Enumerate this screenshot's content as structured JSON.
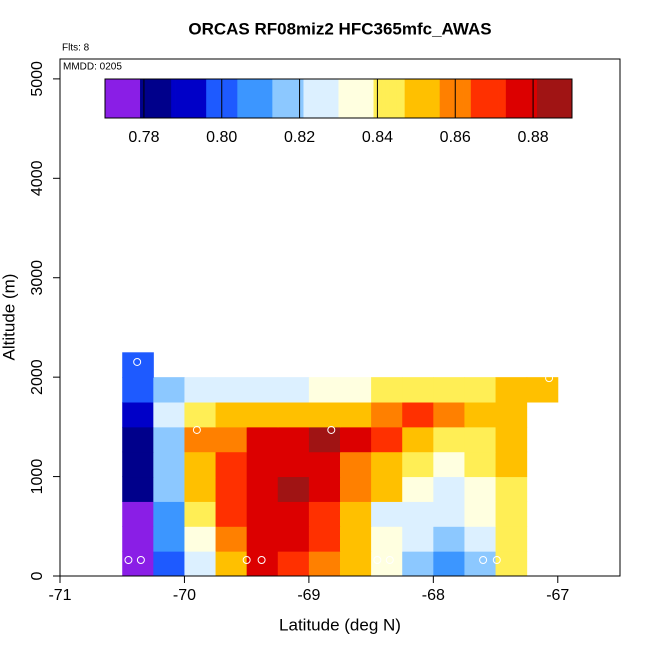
{
  "chart_data": {
    "type": "heatmap",
    "title": "ORCAS RF08miz2 HFC365mfc_AWAS",
    "annotations": [
      "Flts: 8",
      "MMDD: 0205"
    ],
    "xlabel": "Latitude (deg N)",
    "ylabel": "Altitude (m)",
    "xlim": [
      -71,
      -66.5
    ],
    "xticks": [
      -71,
      -70,
      -69,
      -68,
      -67
    ],
    "ylim": [
      0,
      5200
    ],
    "yticks": [
      0,
      1000,
      2000,
      3000,
      4000,
      5000
    ],
    "xbins": [
      -70.5,
      -70.25,
      -70.0,
      -69.75,
      -69.5,
      -69.25,
      -69.0,
      -68.75,
      -68.5,
      -68.25,
      -68.0,
      -67.75,
      -67.5,
      -67.25,
      -67.0
    ],
    "ybins": [
      0,
      250,
      500,
      750,
      1000,
      1250,
      1500,
      1750,
      2000,
      2250
    ],
    "z": [
      [
        0.772,
        0.797,
        0.825,
        0.855,
        0.88,
        0.87,
        0.862,
        0.848,
        0.835,
        0.818,
        0.808,
        0.818,
        0.84,
        null
      ],
      [
        0.776,
        0.805,
        0.833,
        0.862,
        0.878,
        0.88,
        0.866,
        0.855,
        0.836,
        0.825,
        0.82,
        0.822,
        0.843,
        null
      ],
      [
        0.778,
        0.81,
        0.845,
        0.866,
        0.878,
        0.881,
        0.868,
        0.85,
        0.83,
        0.828,
        0.825,
        0.832,
        0.845,
        null
      ],
      [
        0.78,
        0.813,
        0.85,
        0.866,
        0.876,
        0.884,
        0.875,
        0.86,
        0.852,
        0.838,
        0.829,
        0.838,
        0.847,
        null
      ],
      [
        0.783,
        0.817,
        0.855,
        0.866,
        0.874,
        0.881,
        0.878,
        0.862,
        0.853,
        0.847,
        0.833,
        0.843,
        0.848,
        null
      ],
      [
        0.785,
        0.82,
        0.857,
        0.864,
        0.873,
        0.879,
        0.886,
        0.876,
        0.866,
        0.853,
        0.842,
        0.846,
        0.849,
        null
      ],
      [
        0.79,
        0.825,
        0.847,
        0.849,
        0.851,
        0.852,
        0.853,
        0.855,
        0.859,
        0.866,
        0.862,
        0.853,
        0.85,
        null
      ],
      [
        0.797,
        0.821,
        0.822,
        0.823,
        0.825,
        0.828,
        0.833,
        0.836,
        0.84,
        0.843,
        0.845,
        0.847,
        0.85,
        0.852
      ],
      [
        0.8,
        null,
        null,
        null,
        null,
        null,
        null,
        null,
        null,
        null,
        null,
        null,
        null,
        null
      ]
    ],
    "points": {
      "x": [
        -70.45,
        -70.35,
        -70.38,
        -69.9,
        -69.5,
        -69.38,
        -68.82,
        -68.45,
        -68.35,
        -67.6,
        -67.49,
        -67.07
      ],
      "y": [
        161,
        161,
        2153,
        1469,
        161,
        161,
        1469,
        161,
        161,
        161,
        161,
        1990
      ],
      "color": "#ffffff"
    },
    "clim": [
      0.77,
      0.89
    ],
    "cticks": [
      0.78,
      {
        "value": 0.8,
        "label": "0.80"
      },
      0.82,
      0.84,
      0.86,
      0.88
    ],
    "colorscale": [
      "#8a1ee6",
      "#00008b",
      "#0000c8",
      "#1e5aff",
      "#3c96ff",
      "#8cc8ff",
      "#dcf0ff",
      "#ffffe0",
      "#ffee55",
      "#ffc000",
      "#ff8000",
      "#ff3000",
      "#dc0000",
      "#a01414"
    ]
  }
}
